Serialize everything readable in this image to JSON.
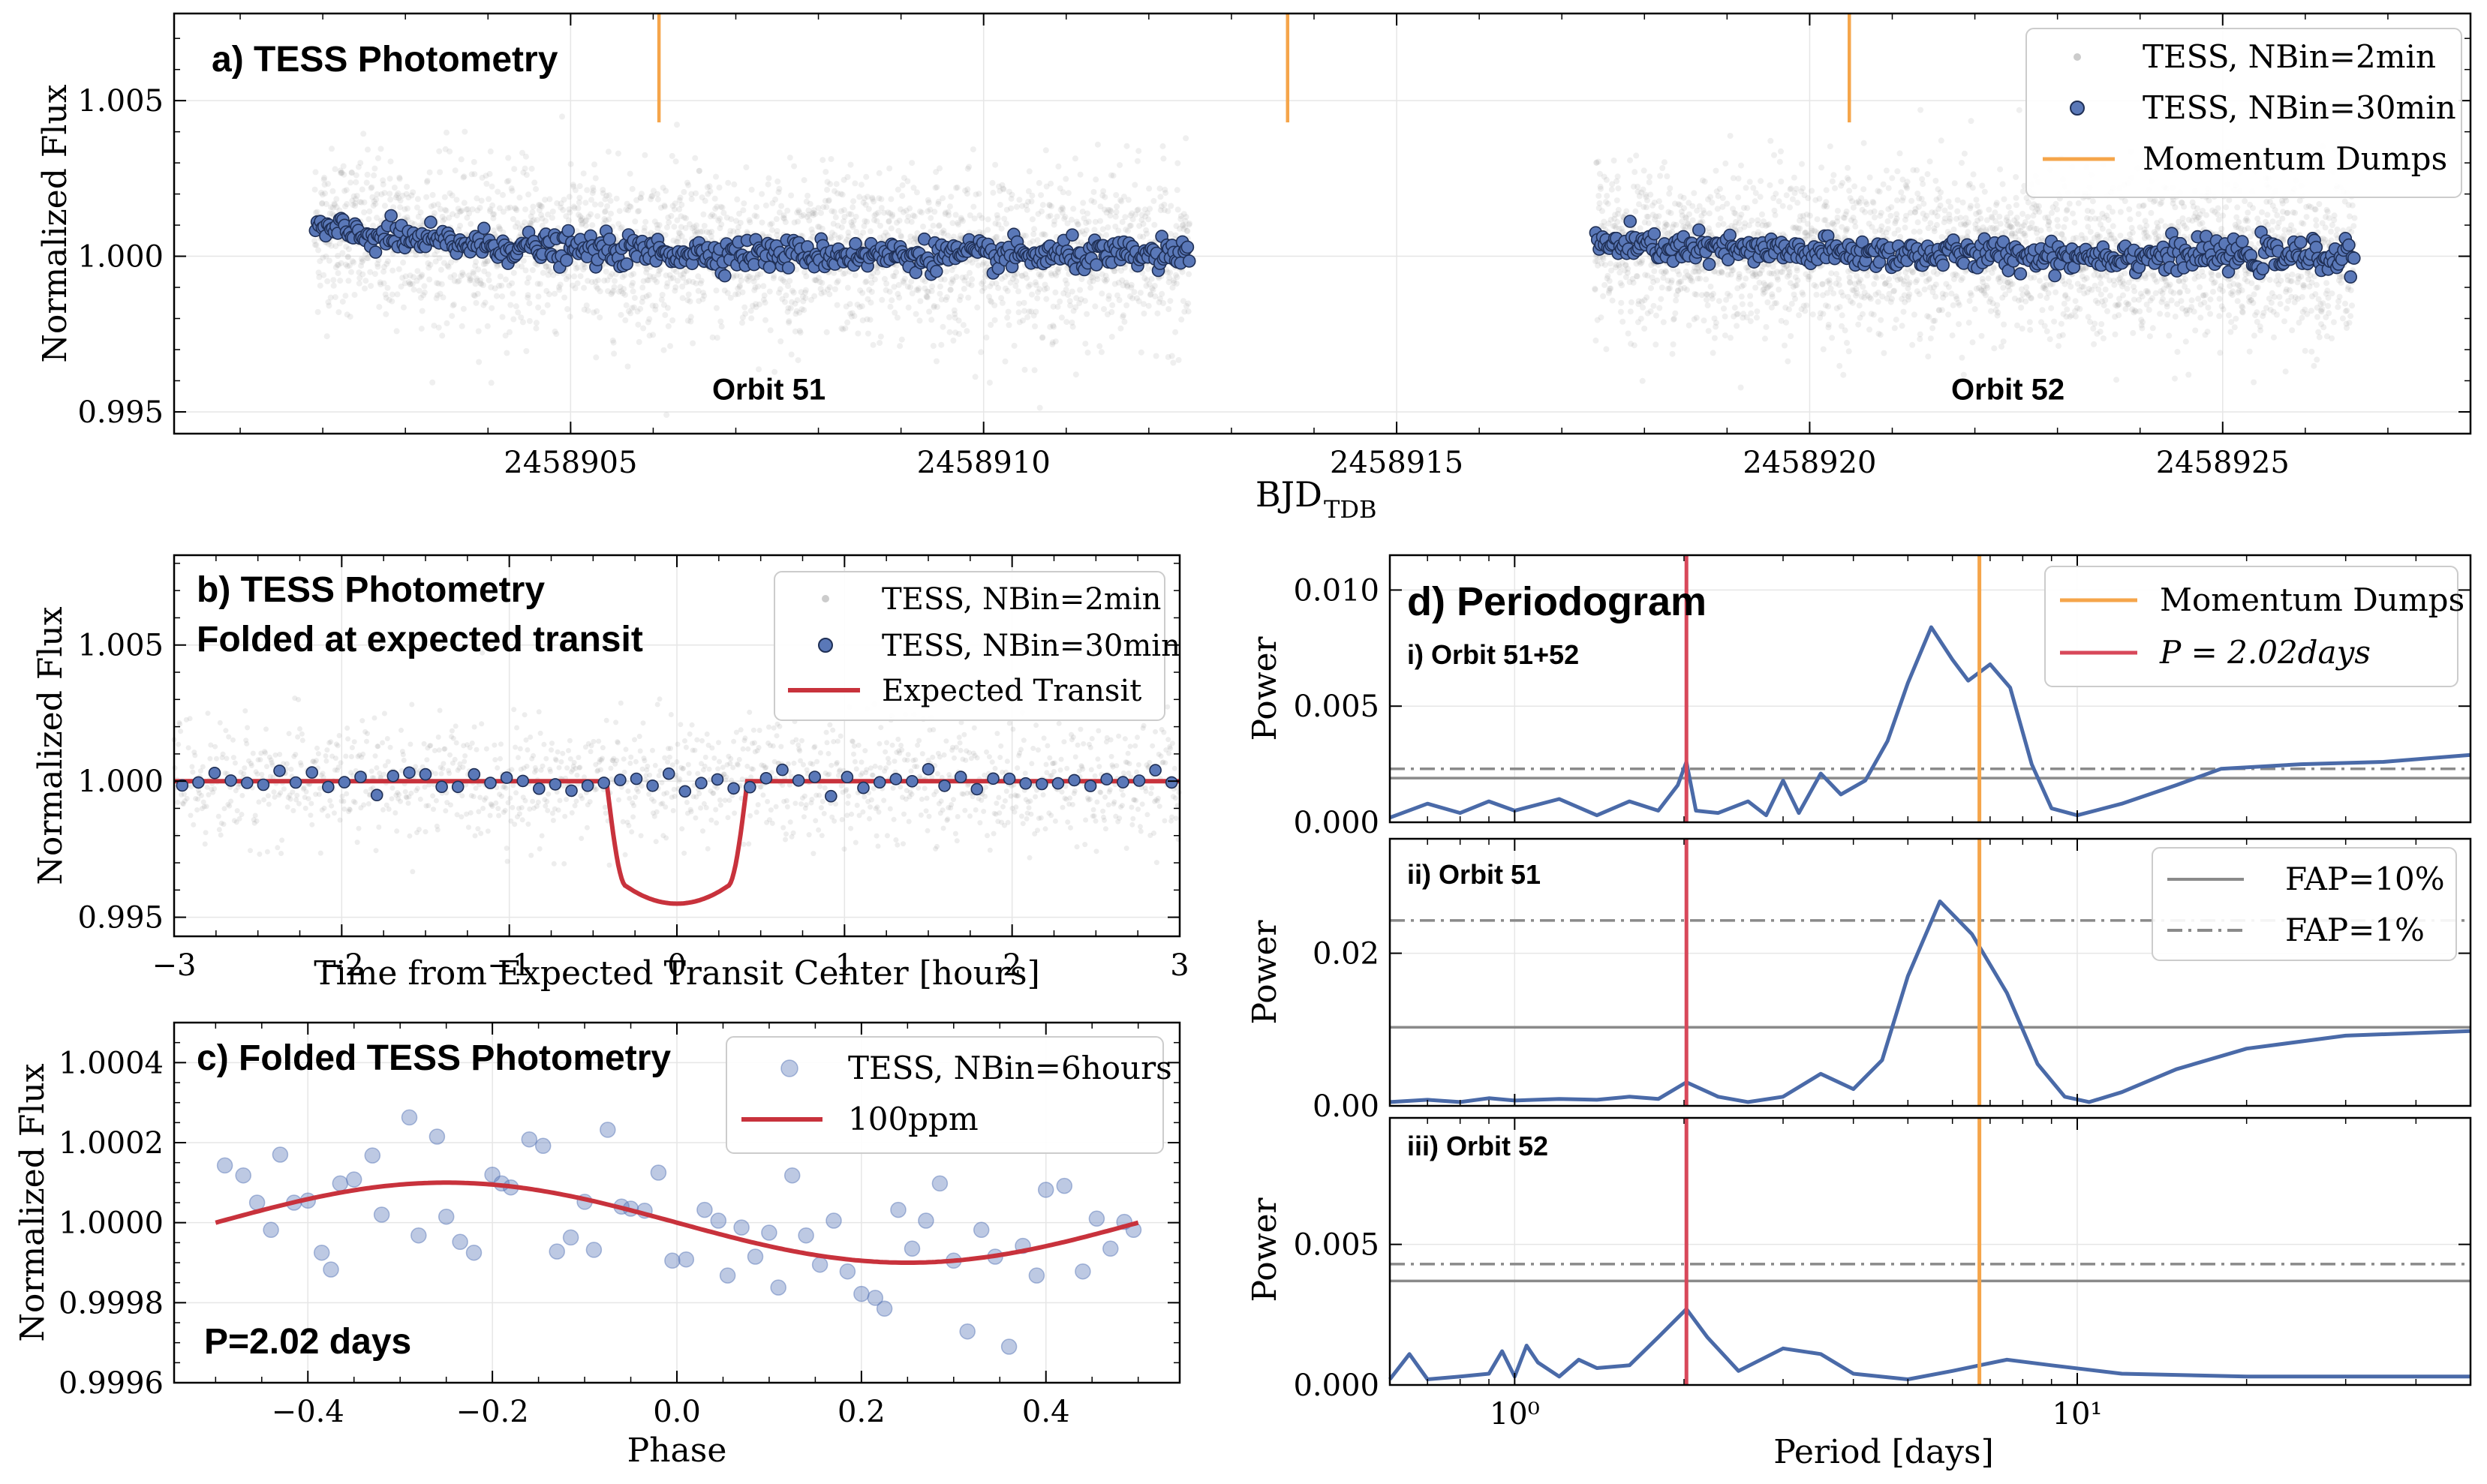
{
  "colors": {
    "binned": "#5a78b8",
    "binned_edge": "#1f2f55",
    "raw": "#9a9a9a",
    "momentum": "#f5a54a",
    "transit": "#c8323c",
    "period": "#d8485a",
    "power": "#4a6aa8",
    "fap": "#8a8a8a"
  },
  "chart_data": [
    {
      "id": "a",
      "type": "scatter",
      "title": "a) TESS Photometry",
      "xlabel": "BJD",
      "xlabel_sub": "TDB",
      "ylabel": "Normalized Flux",
      "xlim": [
        2458900.2,
        2458928.0
      ],
      "ylim": [
        0.9943,
        1.0078
      ],
      "xticks": [
        2458905,
        2458910,
        2458915,
        2458920,
        2458925
      ],
      "xtick_labels": [
        "2458905",
        "2458910",
        "2458915",
        "2458920",
        "2458925"
      ],
      "yticks": [
        0.995,
        1.0,
        1.005
      ],
      "ytick_labels": [
        "0.995",
        "1.000",
        "1.005"
      ],
      "annotations": [
        {
          "text": "Orbit 51",
          "x": 2458907.4,
          "y": 0.9954
        },
        {
          "text": "Orbit 52",
          "x": 2458922.4,
          "y": 0.9954
        }
      ],
      "momentum_dumps": [
        2458906.07,
        2458913.68,
        2458920.48
      ],
      "segments": [
        {
          "start": 2458901.9,
          "end": 2458912.5,
          "start_offset": 0.0009
        },
        {
          "start": 2458917.4,
          "end": 2458926.6,
          "start_offset": 0.0004
        }
      ],
      "series": [
        {
          "name": "TESS, NBin=2min"
        },
        {
          "name": "TESS, NBin=30min"
        },
        {
          "name": "Momentum Dumps"
        }
      ],
      "legend": "top-right"
    },
    {
      "id": "b",
      "type": "scatter",
      "title": "b) TESS Photometry",
      "title2": "Folded at expected transit",
      "xlabel": "Time from Expected Transit Center [hours]",
      "ylabel": "Normalized Flux",
      "xlim": [
        -3,
        3
      ],
      "ylim": [
        0.9943,
        1.0083
      ],
      "xticks": [
        -3,
        -2,
        -1,
        0,
        1,
        2,
        3
      ],
      "xtick_labels": [
        "−3",
        "−2",
        "−1",
        "0",
        "1",
        "2",
        "3"
      ],
      "yticks": [
        0.995,
        1.0,
        1.005
      ],
      "ytick_labels": [
        "0.995",
        "1.000",
        "1.005"
      ],
      "transit_model": {
        "depth": 0.0045,
        "ingress_start": -0.42,
        "flat_start": -0.3,
        "flat_end": 0.3,
        "egress_end": 0.42
      },
      "series": [
        {
          "name": "TESS, NBin=2min"
        },
        {
          "name": "TESS, NBin=30min"
        },
        {
          "name": "Expected Transit"
        }
      ],
      "legend": "top-right"
    },
    {
      "id": "c",
      "type": "scatter",
      "title": "c) Folded TESS Photometry",
      "annotation": "P=2.02 days",
      "xlabel": "Phase",
      "ylabel": "Normalized Flux",
      "xlim": [
        -0.545,
        0.545
      ],
      "ylim": [
        0.9996,
        1.0005
      ],
      "xticks": [
        -0.4,
        -0.2,
        0.0,
        0.2,
        0.4
      ],
      "xtick_labels": [
        "−0.4",
        "−0.2",
        "0.0",
        "0.2",
        "0.4"
      ],
      "yticks": [
        0.9996,
        0.9998,
        1.0,
        1.0002,
        1.0004
      ],
      "ytick_labels": [
        "0.9996",
        "0.9998",
        "1.0000",
        "1.0002",
        "1.0004"
      ],
      "points": [
        [
          -0.49,
          1.000143
        ],
        [
          -0.47,
          1.000118
        ],
        [
          -0.455,
          1.00005
        ],
        [
          -0.44,
          0.999982
        ],
        [
          -0.43,
          1.00017
        ],
        [
          -0.415,
          1.00005
        ],
        [
          -0.4,
          1.000055
        ],
        [
          -0.385,
          0.999925
        ],
        [
          -0.375,
          0.999883
        ],
        [
          -0.365,
          1.000098
        ],
        [
          -0.35,
          1.000108
        ],
        [
          -0.33,
          1.000168
        ],
        [
          -0.32,
          1.00002
        ],
        [
          -0.29,
          1.000263
        ],
        [
          -0.28,
          0.999968
        ],
        [
          -0.26,
          1.000215
        ],
        [
          -0.25,
          1.000015
        ],
        [
          -0.235,
          0.999952
        ],
        [
          -0.22,
          0.999925
        ],
        [
          -0.2,
          1.00012
        ],
        [
          -0.19,
          1.000098
        ],
        [
          -0.18,
          1.000088
        ],
        [
          -0.16,
          1.000208
        ],
        [
          -0.145,
          1.000192
        ],
        [
          -0.13,
          0.999928
        ],
        [
          -0.115,
          0.999963
        ],
        [
          -0.1,
          1.000052
        ],
        [
          -0.09,
          0.999932
        ],
        [
          -0.075,
          1.000232
        ],
        [
          -0.06,
          1.00004
        ],
        [
          -0.05,
          1.000035
        ],
        [
          -0.035,
          1.00003
        ],
        [
          -0.02,
          1.000125
        ],
        [
          -0.005,
          0.999905
        ],
        [
          0.01,
          0.999908
        ],
        [
          0.03,
          1.000032
        ],
        [
          0.045,
          1.000005
        ],
        [
          0.055,
          0.999868
        ],
        [
          0.07,
          0.999988
        ],
        [
          0.085,
          0.999915
        ],
        [
          0.1,
          0.999975
        ],
        [
          0.11,
          0.999838
        ],
        [
          0.125,
          1.000118
        ],
        [
          0.14,
          0.999968
        ],
        [
          0.155,
          0.999895
        ],
        [
          0.17,
          1.000005
        ],
        [
          0.185,
          0.999878
        ],
        [
          0.2,
          0.999822
        ],
        [
          0.215,
          0.999812
        ],
        [
          0.225,
          0.999785
        ],
        [
          0.24,
          1.000032
        ],
        [
          0.255,
          0.999935
        ],
        [
          0.27,
          1.000005
        ],
        [
          0.285,
          1.000098
        ],
        [
          0.3,
          0.999905
        ],
        [
          0.315,
          0.999728
        ],
        [
          0.33,
          0.999982
        ],
        [
          0.345,
          0.999915
        ],
        [
          0.36,
          0.99969
        ],
        [
          0.375,
          0.999942
        ],
        [
          0.39,
          0.999868
        ],
        [
          0.4,
          1.000082
        ],
        [
          0.42,
          1.000092
        ],
        [
          0.44,
          0.999878
        ],
        [
          0.455,
          1.00001
        ],
        [
          0.47,
          0.999935
        ],
        [
          0.485,
          1.000002
        ],
        [
          0.495,
          0.999982
        ]
      ],
      "model": {
        "amplitude_ppm": 100,
        "phase_min": -0.5,
        "phase_max": 0.5
      },
      "series": [
        {
          "name": "TESS, NBin=6hours"
        },
        {
          "name": "100ppm"
        }
      ],
      "legend": "top-right"
    },
    {
      "id": "d",
      "type": "line",
      "title": "d) Periodogram",
      "xlabel": "Period [days]",
      "xscale": "log",
      "xlim": [
        0.6,
        50
      ],
      "xticks": [
        1,
        10
      ],
      "xtick_labels": [
        "10⁰",
        "10¹"
      ],
      "period_line": 2.02,
      "momentum_line": 6.7,
      "legend_top": [
        {
          "name": "Momentum Dumps"
        },
        {
          "name": "P = 2.02days"
        }
      ],
      "legend_fap": [
        {
          "name": "FAP=10%"
        },
        {
          "name": "FAP=1%"
        }
      ],
      "panels": [
        {
          "label": "i) Orbit 51+52",
          "ylabel": "Power",
          "ylim": [
            0,
            0.0115
          ],
          "yticks": [
            0,
            0.005,
            0.01
          ],
          "ytick_labels": [
            "0.000",
            "0.005",
            "0.010"
          ],
          "fap10": 0.0019,
          "fap1": 0.0023,
          "curve": [
            [
              0.6,
              0.0002
            ],
            [
              0.7,
              0.0008
            ],
            [
              0.8,
              0.0004
            ],
            [
              0.9,
              0.0009
            ],
            [
              1.0,
              0.0005
            ],
            [
              1.2,
              0.001
            ],
            [
              1.4,
              0.0003
            ],
            [
              1.6,
              0.0009
            ],
            [
              1.8,
              0.0005
            ],
            [
              1.95,
              0.0016
            ],
            [
              2.02,
              0.0026
            ],
            [
              2.1,
              0.0005
            ],
            [
              2.3,
              0.0004
            ],
            [
              2.6,
              0.0009
            ],
            [
              2.8,
              0.0003
            ],
            [
              3.0,
              0.0018
            ],
            [
              3.2,
              0.0004
            ],
            [
              3.5,
              0.0021
            ],
            [
              3.8,
              0.0012
            ],
            [
              4.2,
              0.0018
            ],
            [
              4.6,
              0.0035
            ],
            [
              5.0,
              0.006
            ],
            [
              5.5,
              0.0084
            ],
            [
              6.0,
              0.007
            ],
            [
              6.4,
              0.0061
            ],
            [
              7.0,
              0.0068
            ],
            [
              7.6,
              0.0058
            ],
            [
              8.3,
              0.0025
            ],
            [
              9.0,
              0.0006
            ],
            [
              10,
              0.0003
            ],
            [
              12,
              0.0008
            ],
            [
              15,
              0.0016
            ],
            [
              18,
              0.0023
            ],
            [
              25,
              0.0025
            ],
            [
              35,
              0.0026
            ],
            [
              50,
              0.0029
            ]
          ]
        },
        {
          "label": "ii) Orbit 51",
          "ylabel": "Power",
          "ylim": [
            0,
            0.035
          ],
          "yticks": [
            0,
            0.02
          ],
          "ytick_labels": [
            "0.00",
            "0.02"
          ],
          "fap10": 0.0103,
          "fap1": 0.0243,
          "curve": [
            [
              0.6,
              0.0005
            ],
            [
              0.7,
              0.0008
            ],
            [
              0.8,
              0.0005
            ],
            [
              0.9,
              0.001
            ],
            [
              1.0,
              0.0007
            ],
            [
              1.2,
              0.0009
            ],
            [
              1.4,
              0.0008
            ],
            [
              1.6,
              0.0012
            ],
            [
              1.8,
              0.0009
            ],
            [
              2.02,
              0.0031
            ],
            [
              2.3,
              0.0012
            ],
            [
              2.6,
              0.0005
            ],
            [
              3.0,
              0.0012
            ],
            [
              3.5,
              0.0042
            ],
            [
              4.0,
              0.0022
            ],
            [
              4.5,
              0.006
            ],
            [
              5.0,
              0.017
            ],
            [
              5.7,
              0.0268
            ],
            [
              6.5,
              0.0225
            ],
            [
              7.5,
              0.0148
            ],
            [
              8.5,
              0.0055
            ],
            [
              9.5,
              0.0012
            ],
            [
              10.5,
              0.0005
            ],
            [
              12,
              0.0018
            ],
            [
              15,
              0.0048
            ],
            [
              20,
              0.0075
            ],
            [
              30,
              0.0092
            ],
            [
              50,
              0.0098
            ]
          ]
        },
        {
          "label": "iii) Orbit 52",
          "ylabel": "Power",
          "ylim": [
            0,
            0.0095
          ],
          "yticks": [
            0,
            0.005
          ],
          "ytick_labels": [
            "0.000",
            "0.005"
          ],
          "fap10": 0.0037,
          "fap1": 0.0043,
          "curve": [
            [
              0.6,
              0.0002
            ],
            [
              0.65,
              0.0011
            ],
            [
              0.7,
              0.0002
            ],
            [
              0.8,
              0.0003
            ],
            [
              0.9,
              0.0004
            ],
            [
              0.95,
              0.0012
            ],
            [
              1.0,
              0.0003
            ],
            [
              1.05,
              0.0014
            ],
            [
              1.1,
              0.0008
            ],
            [
              1.2,
              0.0003
            ],
            [
              1.3,
              0.0009
            ],
            [
              1.4,
              0.0006
            ],
            [
              1.6,
              0.0007
            ],
            [
              1.8,
              0.0017
            ],
            [
              2.02,
              0.0027
            ],
            [
              2.2,
              0.0017
            ],
            [
              2.5,
              0.0005
            ],
            [
              3.0,
              0.0013
            ],
            [
              3.5,
              0.0011
            ],
            [
              4.0,
              0.0004
            ],
            [
              5.0,
              0.0002
            ],
            [
              6.0,
              0.0005
            ],
            [
              7.5,
              0.0009
            ],
            [
              9,
              0.0007
            ],
            [
              12,
              0.0004
            ],
            [
              20,
              0.0003
            ],
            [
              50,
              0.0003
            ]
          ]
        }
      ]
    }
  ]
}
